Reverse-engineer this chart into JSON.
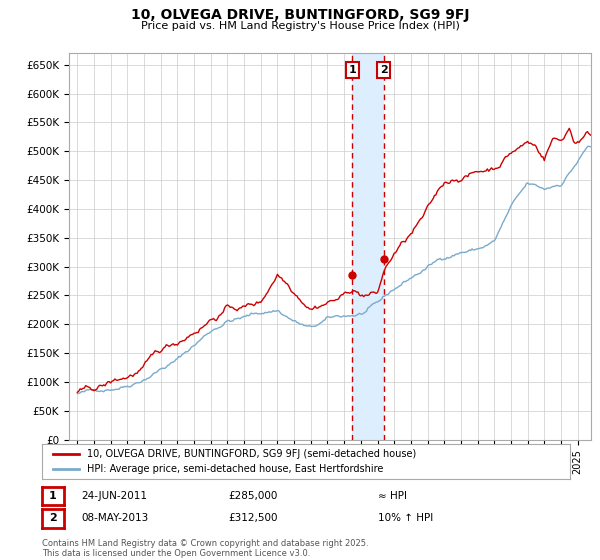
{
  "title": "10, OLVEGA DRIVE, BUNTINGFORD, SG9 9FJ",
  "subtitle": "Price paid vs. HM Land Registry's House Price Index (HPI)",
  "legend_line1": "10, OLVEGA DRIVE, BUNTINGFORD, SG9 9FJ (semi-detached house)",
  "legend_line2": "HPI: Average price, semi-detached house, East Hertfordshire",
  "footnote": "Contains HM Land Registry data © Crown copyright and database right 2025.\nThis data is licensed under the Open Government Licence v3.0.",
  "sale1_date": "24-JUN-2011",
  "sale1_price": "£285,000",
  "sale1_note": "≈ HPI",
  "sale2_date": "08-MAY-2013",
  "sale2_price": "£312,500",
  "sale2_note": "10% ↑ HPI",
  "red_color": "#cc0000",
  "blue_color": "#7aaacc",
  "grid_color": "#cccccc",
  "highlight_color": "#ddeeff",
  "sale1_year": 2011.48,
  "sale2_year": 2013.36,
  "ylim_min": 0,
  "ylim_max": 670000,
  "xmin": 1994.5,
  "xmax": 2025.8,
  "noise_seed": 42
}
